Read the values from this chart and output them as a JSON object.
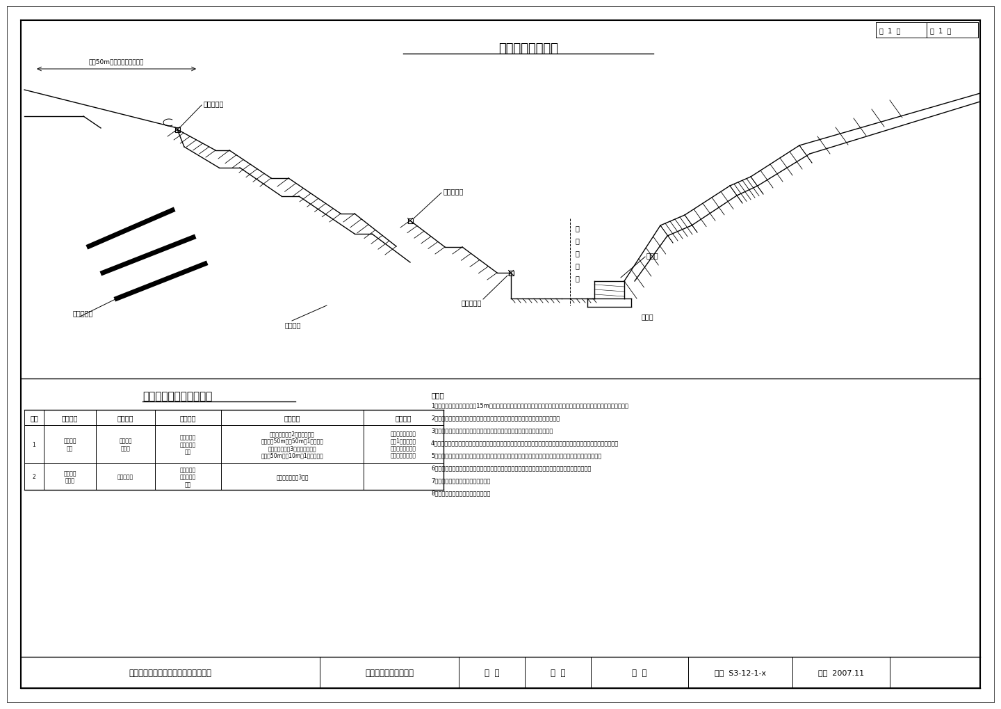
{
  "bg_color": "#ffffff",
  "line_color": "#000000",
  "title": "监测点断面布置图",
  "page_text1": "第  1  页",
  "page_text2": "共  1  页",
  "subtitle2": "监测项目、数量、周期表",
  "notes_title": "备注：",
  "notes": [
    "1、本图适用于边坡高度大于15m的高边坡、滑坡、火爆岩岩坡及滑坡监测；监测项目主要包括坡表位移、抗滑桩变形监测。",
    "2、依靠桩基浇灌平固，直采用混凝浆混凝土制作，抗滑桩上可安置顶面钢楔形孔。",
    "3、测试元件和各监测点应满足各监测项目精度要求，并具有良好的稳定性能。",
    "4、监定调查点及测对象项和分析，监测结采用于指导施工，观察千变化调管管松及以求赴推进加以弥失，确保工程安全。",
    "5、监控数据调查应采用光电测距仪水平仪进行，监测资料应专程记录案，监控测量基坐点应用工平面控制后。",
    "6、各竖让对开元应反用进行检测、按顶调期。判断无需变更设计后施工驾护工程，尤要下一般展开整。",
    "7、监测工作点由专业监测单位承担。",
    "8、监测工作点由专业监测单位承担。"
  ],
  "table_header": [
    "序号",
    "监测项目",
    "测试元件",
    "使用条件",
    "测试数量",
    "监测周期"
  ],
  "project": "石柱县石柏公路县境至三店互通连接线",
  "drawing_name": "边坡监测点断面布置图",
  "design_label": "设  计",
  "check_label": "复  核",
  "review_label": "审  核",
  "drawing_no": "图号  S3-12-1-x",
  "date_label": "日期  2007.11"
}
